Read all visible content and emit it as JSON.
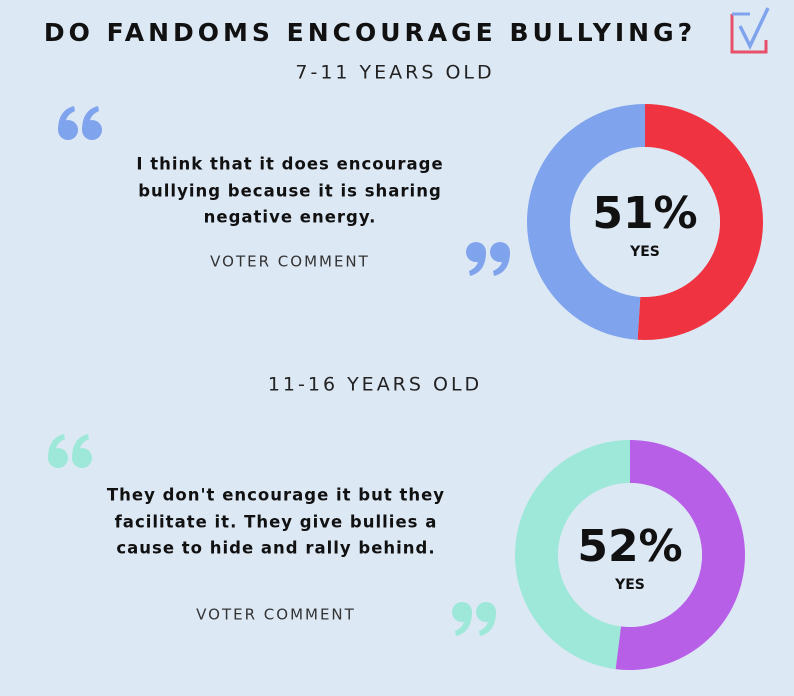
{
  "title": "DO FANDOMS ENCOURAGE BULLYING?",
  "chart_data": [
    {
      "type": "donut",
      "subtitle": "7-11 YEARS OLD",
      "comment": [
        "I think that it does encourage",
        "bullying because it is sharing",
        "negative energy."
      ],
      "comment_label": "VOTER COMMENT",
      "categories": [
        "YES",
        null
      ],
      "values": [
        51,
        49
      ],
      "value_labels": [
        "51%",
        null
      ],
      "colors": [
        "#ef3340",
        "#7fa3ec"
      ]
    },
    {
      "type": "donut",
      "subtitle": "11-16 YEARS OLD",
      "comment": [
        "They don't encourage it but they",
        "facilitate it. They give bullies a",
        "cause to hide and rally behind."
      ],
      "comment_label": "VOTER COMMENT",
      "categories": [
        "YES",
        null
      ],
      "values": [
        52,
        48
      ],
      "value_labels": [
        "52%",
        null
      ],
      "colors": [
        "#b85fe8",
        "#9de8d8"
      ]
    }
  ]
}
